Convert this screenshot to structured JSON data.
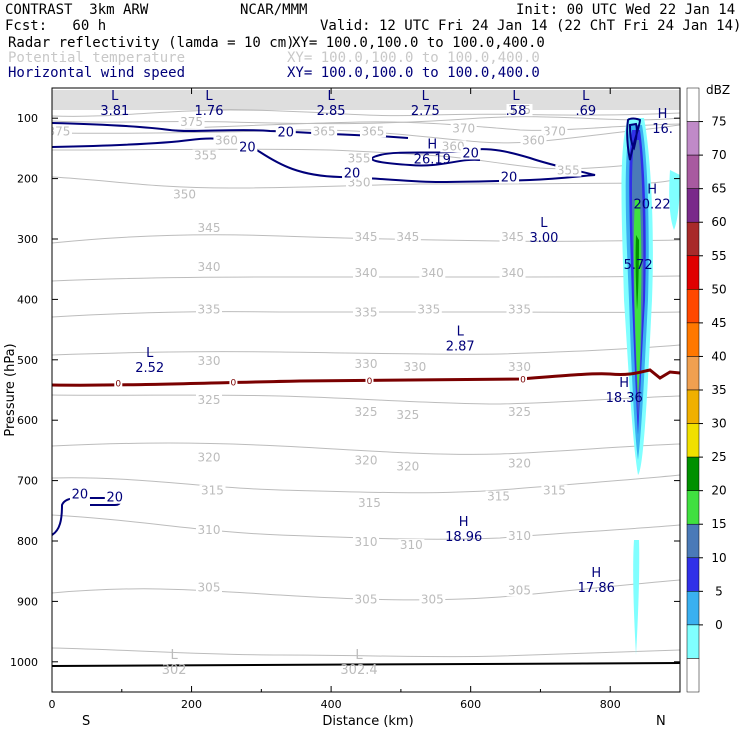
{
  "header": {
    "line1_left": "CONTRAST  3km ARW",
    "line1_center": "NCAR/MMM",
    "line1_right": "Init: 00 UTC Wed 22 Jan 14",
    "line2_left": "Fcst:   60 h",
    "line2_right": "Valid: 12 UTC Fri 24 Jan 14 (22 ChT Fri 24 Jan 14)",
    "fields": [
      {
        "label": "Radar reflectivity (lamda = 10 cm)",
        "xy": "XY= 100.0,100.0 to 100.0,400.0",
        "color": "#000000"
      },
      {
        "label": "Potential temperature",
        "xy": "XY= 100.0,100.0 to 100.0,400.0",
        "color": "#c8c8c8"
      },
      {
        "label": "Horizontal wind speed",
        "xy": "XY= 100.0,100.0 to 100.0,400.0",
        "color": "#00007a"
      }
    ]
  },
  "chart_data": {
    "type": "contour-cross-section",
    "xlabel": "Distance (km)",
    "ylabel": "Pressure (hPa)",
    "x_ticks": [
      "0",
      "200",
      "400",
      "600",
      "800"
    ],
    "x_range_km": [
      0,
      900
    ],
    "y_ticks": [
      "100",
      "200",
      "300",
      "400",
      "500",
      "600",
      "700",
      "800",
      "900",
      "1000"
    ],
    "y_range_hpa": [
      1050,
      50
    ],
    "end_labels": {
      "left": "S",
      "right": "N"
    },
    "theta_levels": [
      305,
      310,
      315,
      320,
      325,
      330,
      335,
      340,
      345,
      350,
      355,
      360,
      365,
      370,
      375
    ],
    "theta_labels": [
      {
        "x": 10,
        "p": 125,
        "t": "375"
      },
      {
        "x": 200,
        "p": 110,
        "t": "375"
      },
      {
        "x": 390,
        "p": 125,
        "t": "365"
      },
      {
        "x": 460,
        "p": 125,
        "t": "365"
      },
      {
        "x": 590,
        "p": 120,
        "t": "370"
      },
      {
        "x": 720,
        "p": 125,
        "t": "370"
      },
      {
        "x": 670,
        "p": 90,
        "t": "375"
      },
      {
        "x": 690,
        "p": 140,
        "t": "360"
      },
      {
        "x": 250,
        "p": 140,
        "t": "360"
      },
      {
        "x": 220,
        "p": 165,
        "t": "355"
      },
      {
        "x": 440,
        "p": 170,
        "t": "355"
      },
      {
        "x": 575,
        "p": 150,
        "t": "360"
      },
      {
        "x": 440,
        "p": 210,
        "t": "350"
      },
      {
        "x": 740,
        "p": 190,
        "t": "355"
      },
      {
        "x": 190,
        "p": 230,
        "t": "350"
      },
      {
        "x": 225,
        "p": 285,
        "t": "345"
      },
      {
        "x": 450,
        "p": 300,
        "t": "345"
      },
      {
        "x": 510,
        "p": 300,
        "t": "345"
      },
      {
        "x": 660,
        "p": 300,
        "t": "345"
      },
      {
        "x": 225,
        "p": 350,
        "t": "340"
      },
      {
        "x": 450,
        "p": 360,
        "t": "340"
      },
      {
        "x": 545,
        "p": 360,
        "t": "340"
      },
      {
        "x": 660,
        "p": 360,
        "t": "340"
      },
      {
        "x": 225,
        "p": 420,
        "t": "335"
      },
      {
        "x": 450,
        "p": 425,
        "t": "335"
      },
      {
        "x": 540,
        "p": 420,
        "t": "335"
      },
      {
        "x": 670,
        "p": 420,
        "t": "335"
      },
      {
        "x": 225,
        "p": 505,
        "t": "330"
      },
      {
        "x": 450,
        "p": 510,
        "t": "330"
      },
      {
        "x": 520,
        "p": 515,
        "t": "330"
      },
      {
        "x": 670,
        "p": 515,
        "t": "330"
      },
      {
        "x": 225,
        "p": 570,
        "t": "325"
      },
      {
        "x": 450,
        "p": 590,
        "t": "325"
      },
      {
        "x": 510,
        "p": 595,
        "t": "325"
      },
      {
        "x": 670,
        "p": 590,
        "t": "325"
      },
      {
        "x": 225,
        "p": 665,
        "t": "320"
      },
      {
        "x": 450,
        "p": 670,
        "t": "320"
      },
      {
        "x": 510,
        "p": 680,
        "t": "320"
      },
      {
        "x": 670,
        "p": 675,
        "t": "320"
      },
      {
        "x": 230,
        "p": 720,
        "t": "315"
      },
      {
        "x": 455,
        "p": 740,
        "t": "315"
      },
      {
        "x": 640,
        "p": 730,
        "t": "315"
      },
      {
        "x": 720,
        "p": 720,
        "t": "315"
      },
      {
        "x": 225,
        "p": 785,
        "t": "310"
      },
      {
        "x": 450,
        "p": 805,
        "t": "310"
      },
      {
        "x": 515,
        "p": 810,
        "t": "310"
      },
      {
        "x": 670,
        "p": 795,
        "t": "310"
      },
      {
        "x": 225,
        "p": 880,
        "t": "305"
      },
      {
        "x": 450,
        "p": 900,
        "t": "305"
      },
      {
        "x": 545,
        "p": 900,
        "t": "305"
      },
      {
        "x": 670,
        "p": 885,
        "t": "305"
      }
    ],
    "wind_labels": [
      {
        "x": 335,
        "p": 125,
        "t": "20"
      },
      {
        "x": 280,
        "p": 150,
        "t": "20"
      },
      {
        "x": 600,
        "p": 160,
        "t": "20"
      },
      {
        "x": 430,
        "p": 193,
        "t": "20"
      },
      {
        "x": 655,
        "p": 200,
        "t": "20"
      },
      {
        "x": 40,
        "p": 725,
        "t": "20"
      },
      {
        "x": 90,
        "p": 730,
        "t": "20"
      }
    ],
    "extrema": [
      {
        "kind": "L",
        "x": 90,
        "p": 70,
        "value": "3.81"
      },
      {
        "kind": "L",
        "x": 225,
        "p": 70,
        "value": "1.76"
      },
      {
        "kind": "L",
        "x": 400,
        "p": 70,
        "value": "2.85"
      },
      {
        "kind": "L",
        "x": 535,
        "p": 70,
        "value": "2.75"
      },
      {
        "kind": "L",
        "x": 665,
        "p": 70,
        "value": ".58"
      },
      {
        "kind": "L",
        "x": 765,
        "p": 70,
        "value": ".69"
      },
      {
        "kind": "H",
        "x": 875,
        "p": 100,
        "value": "16."
      },
      {
        "kind": "H",
        "x": 545,
        "p": 150,
        "value": "26.19"
      },
      {
        "kind": "H",
        "x": 860,
        "p": 225,
        "value": "20.22"
      },
      {
        "kind": "L",
        "x": 705,
        "p": 280,
        "value": "3.00"
      },
      {
        "kind": "",
        "x": 840,
        "p": 325,
        "value": "5.72"
      },
      {
        "kind": "L",
        "x": 585,
        "p": 460,
        "value": "2.87"
      },
      {
        "kind": "L",
        "x": 140,
        "p": 495,
        "value": "2.52"
      },
      {
        "kind": "H",
        "x": 820,
        "p": 545,
        "value": "18.36"
      },
      {
        "kind": "H",
        "x": 590,
        "p": 775,
        "value": "18.96"
      },
      {
        "kind": "H",
        "x": 780,
        "p": 860,
        "value": "17.86"
      },
      {
        "kind": "L",
        "x": 175,
        "p": 995,
        "value": "302"
      },
      {
        "kind": "L",
        "x": 440,
        "p": 995,
        "value": "302.4"
      }
    ],
    "zero_labels": [
      {
        "x": 95,
        "t": "0"
      },
      {
        "x": 260,
        "t": "0"
      },
      {
        "x": 455,
        "t": "0"
      },
      {
        "x": 675,
        "t": "0"
      }
    ],
    "colorbar": {
      "unit": "dBZ",
      "levels": [
        "75",
        "70",
        "65",
        "60",
        "55",
        "50",
        "45",
        "40",
        "35",
        "30",
        "25",
        "20",
        "15",
        "10",
        "5",
        "0"
      ],
      "colors": [
        "#ffffff",
        "#c08ac8",
        "#a85aa0",
        "#7a2a8a",
        "#a82a2a",
        "#e00000",
        "#ff4800",
        "#ff7800",
        "#f0a050",
        "#f0b000",
        "#f0e000",
        "#009000",
        "#40e040",
        "#4a7ab8",
        "#3030e8",
        "#3ab0f0",
        "#80ffff",
        "#ffffff"
      ]
    },
    "colors": {
      "theta": "#bcbcbc",
      "wind": "#00007a",
      "zero": "#7a0000",
      "terrain": "#000000"
    }
  }
}
